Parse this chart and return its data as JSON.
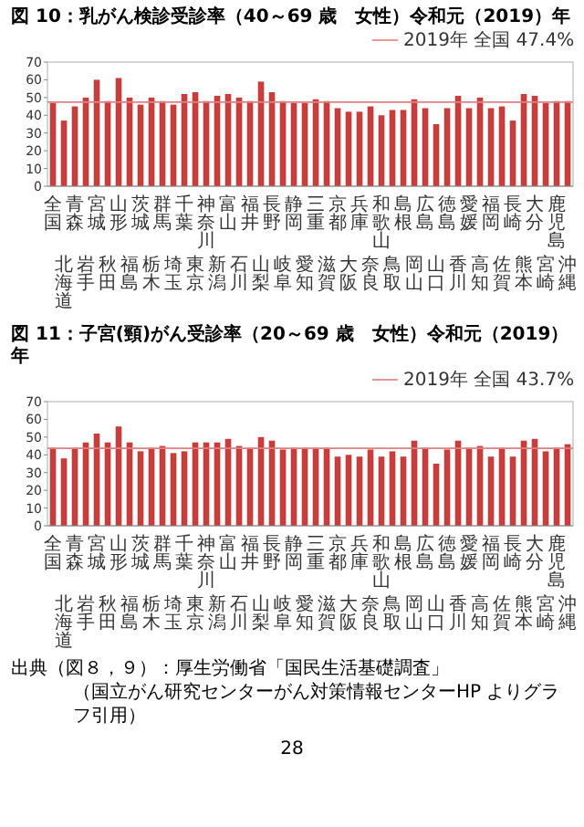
{
  "chart_data": [
    {
      "type": "bar",
      "title": "図 10：乳がん検診受診率（40～69 歳　女性）令和元（2019）年",
      "categories": [
        "全国",
        "北海道",
        "青森",
        "岩手",
        "宮城",
        "秋田",
        "山形",
        "福島",
        "茨城",
        "栃木",
        "群馬",
        "埼玉",
        "千葉",
        "東京",
        "神奈川",
        "新潟",
        "富山",
        "石川",
        "福井",
        "山梨",
        "長野",
        "岐阜",
        "静岡",
        "愛知",
        "三重",
        "滋賀",
        "京都",
        "大阪",
        "兵庫",
        "奈良",
        "和歌山",
        "鳥取",
        "島根",
        "岡山",
        "広島",
        "山口",
        "徳島",
        "香川",
        "愛媛",
        "高知",
        "福岡",
        "佐賀",
        "長崎",
        "熊本",
        "大分",
        "宮崎",
        "鹿児島",
        "沖縄"
      ],
      "values": [
        47,
        37,
        45,
        50,
        60,
        48,
        61,
        50,
        46,
        50,
        48,
        46,
        52,
        53,
        48,
        51,
        52,
        50,
        48,
        59,
        53,
        48,
        47,
        47,
        49,
        48,
        44,
        42,
        42,
        45,
        40,
        43,
        43,
        49,
        44,
        35,
        44,
        51,
        44,
        50,
        44,
        45,
        37,
        52,
        51,
        47,
        48,
        48
      ],
      "color": "#c83c3c",
      "ylim": [
        0,
        70
      ],
      "yticks": [
        0,
        10,
        20,
        30,
        40,
        50,
        60,
        70
      ],
      "ref_lines": [
        {
          "axis": "y",
          "value": 47.4,
          "label": "2019年 全国 47.4%",
          "color": "#e08080"
        }
      ]
    },
    {
      "type": "bar",
      "title": "図 11：子宮(頸)がん受診率（20～69 歳　女性）令和元（2019）年",
      "categories": [
        "全国",
        "北海道",
        "青森",
        "岩手",
        "宮城",
        "秋田",
        "山形",
        "福島",
        "茨城",
        "栃木",
        "群馬",
        "埼玉",
        "千葉",
        "東京",
        "神奈川",
        "新潟",
        "富山",
        "石川",
        "福井",
        "山梨",
        "長野",
        "岐阜",
        "静岡",
        "愛知",
        "三重",
        "滋賀",
        "京都",
        "大阪",
        "兵庫",
        "奈良",
        "和歌山",
        "鳥取",
        "島根",
        "岡山",
        "広島",
        "山口",
        "徳島",
        "香川",
        "愛媛",
        "高知",
        "福岡",
        "佐賀",
        "長崎",
        "熊本",
        "大分",
        "宮崎",
        "鹿児島",
        "沖縄"
      ],
      "values": [
        44,
        38,
        44,
        47,
        52,
        47,
        56,
        47,
        42,
        44,
        45,
        41,
        42,
        47,
        47,
        47,
        49,
        45,
        44,
        50,
        48,
        43,
        44,
        44,
        44,
        44,
        39,
        40,
        39,
        43,
        39,
        42,
        39,
        48,
        44,
        35,
        43,
        48,
        44,
        45,
        39,
        44,
        39,
        48,
        49,
        42,
        44,
        46
      ],
      "color": "#c83c3c",
      "ylim": [
        0,
        70
      ],
      "yticks": [
        0,
        10,
        20,
        30,
        40,
        50,
        60,
        70
      ],
      "ref_lines": [
        {
          "axis": "y",
          "value": 43.7,
          "label": "2019年 全国 43.7%",
          "color": "#e08080"
        }
      ],
      "annotations": [
        "出典（図８，９）：厚生労働省「国民生活基礎調査」",
        "（国立がん研究センターがん対策情報センターHP よりグラフ引用）",
        "28"
      ]
    }
  ]
}
